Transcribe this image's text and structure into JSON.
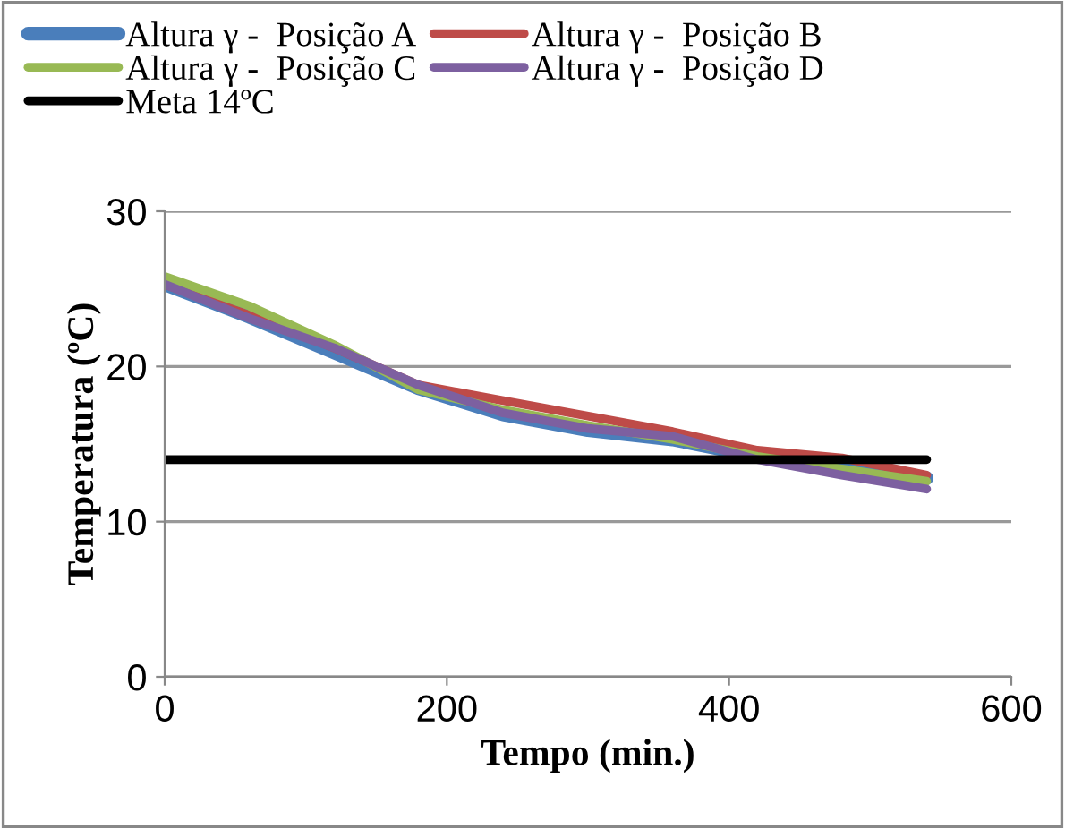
{
  "chart_data": {
    "type": "line",
    "xlabel": "Tempo (min.)",
    "ylabel": "Temperatura (ºC)",
    "xlim": [
      0,
      600
    ],
    "xticks": [
      0,
      200,
      400,
      600
    ],
    "ylim": [
      0,
      30
    ],
    "yticks": [
      0,
      10,
      20,
      30
    ],
    "grid": "y",
    "legend": "top",
    "marker": "none",
    "line_style": "solid",
    "series": [
      {
        "name": "Altura γ -  Posição A",
        "color": "#4a7ebb",
        "x": [
          0,
          60,
          120,
          180,
          240,
          300,
          360,
          420,
          480,
          540
        ],
        "values": [
          25.3,
          23.2,
          20.9,
          18.6,
          16.9,
          15.9,
          15.3,
          14.2,
          13.6,
          12.8
        ]
      },
      {
        "name": "Altura γ -  Posição B",
        "color": "#be4b48",
        "x": [
          0,
          60,
          120,
          180,
          240,
          300,
          360,
          420,
          480,
          540
        ],
        "values": [
          25.3,
          23.3,
          21.2,
          18.8,
          17.8,
          16.8,
          15.8,
          14.6,
          14.1,
          13.0
        ]
      },
      {
        "name": "Altura γ -  Posição C",
        "color": "#98b954",
        "x": [
          0,
          60,
          120,
          180,
          240,
          300,
          360,
          420,
          480,
          540
        ],
        "values": [
          25.8,
          23.9,
          21.4,
          18.5,
          17.2,
          16.2,
          15.3,
          14.2,
          13.4,
          12.6
        ]
      },
      {
        "name": "Altura γ -  Posição D",
        "color": "#7d60a0",
        "x": [
          0,
          60,
          120,
          180,
          240,
          300,
          360,
          420,
          480,
          540
        ],
        "values": [
          25.3,
          23.1,
          21.2,
          18.8,
          17.0,
          16.0,
          15.5,
          14.0,
          13.0,
          12.1
        ]
      },
      {
        "name": "Meta 14ºC",
        "color": "#000000",
        "x": [
          0,
          540
        ],
        "values": [
          14,
          14
        ]
      }
    ]
  }
}
